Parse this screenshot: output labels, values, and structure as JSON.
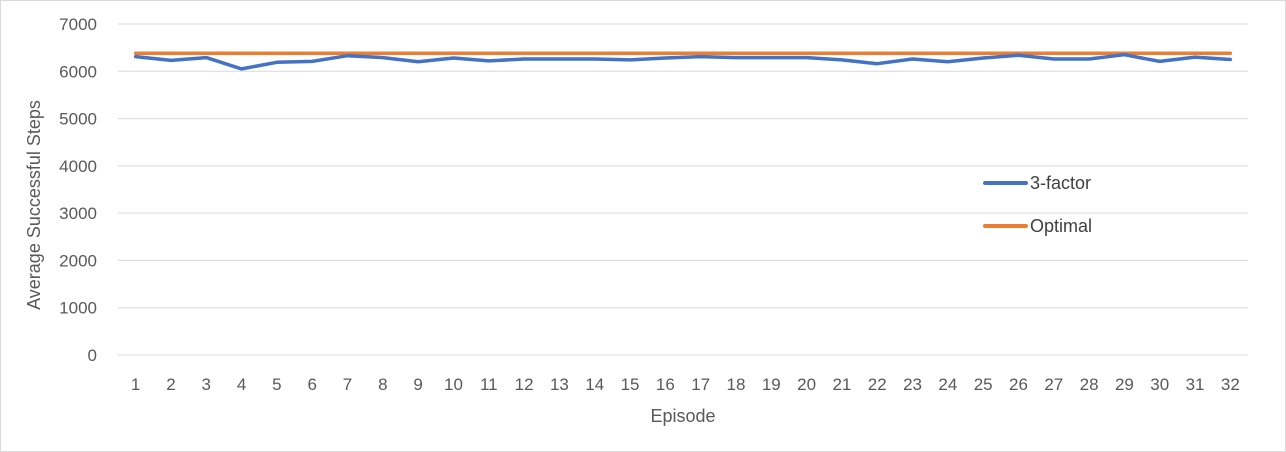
{
  "chart_data": {
    "type": "line",
    "categories": [
      "1",
      "2",
      "3",
      "4",
      "5",
      "6",
      "7",
      "8",
      "9",
      "10",
      "11",
      "12",
      "13",
      "14",
      "15",
      "16",
      "17",
      "18",
      "19",
      "20",
      "21",
      "22",
      "23",
      "24",
      "25",
      "26",
      "27",
      "28",
      "29",
      "30",
      "31",
      "32"
    ],
    "series": [
      {
        "name": "3-factor",
        "color": "#4472C4",
        "values": [
          6310,
          6230,
          6290,
          6050,
          6190,
          6210,
          6330,
          6290,
          6200,
          6280,
          6220,
          6260,
          6260,
          6260,
          6240,
          6280,
          6310,
          6290,
          6290,
          6290,
          6240,
          6160,
          6260,
          6200,
          6280,
          6340,
          6260,
          6260,
          6350,
          6210,
          6300,
          6250
        ]
      },
      {
        "name": "Optimal",
        "color": "#ED7D31",
        "values": [
          6380,
          6380,
          6380,
          6380,
          6380,
          6380,
          6380,
          6380,
          6380,
          6380,
          6380,
          6380,
          6380,
          6380,
          6380,
          6380,
          6380,
          6380,
          6380,
          6380,
          6380,
          6380,
          6380,
          6380,
          6380,
          6380,
          6380,
          6380,
          6380,
          6380,
          6380,
          6380
        ]
      }
    ],
    "ylabel": "Average Successful Steps",
    "xlabel": "Episode",
    "ylim": [
      0,
      7000
    ],
    "yticks": [
      0,
      1000,
      2000,
      3000,
      4000,
      5000,
      6000,
      7000
    ],
    "grid": true,
    "legend_position": "right"
  }
}
